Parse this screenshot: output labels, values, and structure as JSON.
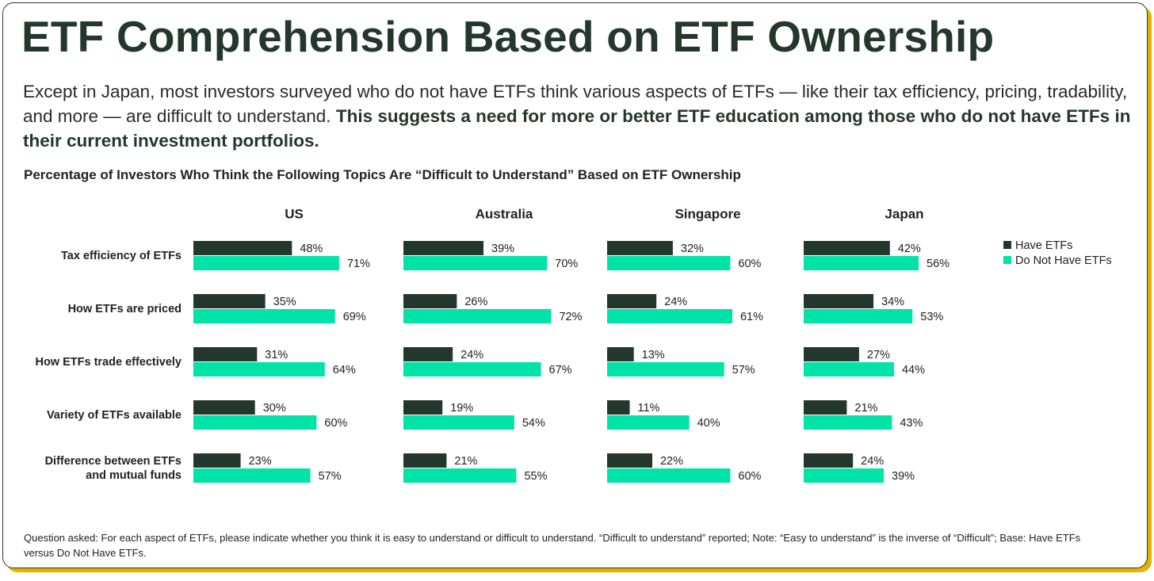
{
  "title": "ETF Comprehension Based on ETF Ownership",
  "subtitle": {
    "plain": "Except in Japan, most investors surveyed who do not have ETFs think various aspects of ETFs — like their tax efficiency, pricing, tradability, and more — are difficult to understand.",
    "bold": "This suggests a need for more or better ETF education among those who do not have ETFs in their current investment portfolios."
  },
  "footnote": "Question asked: For each aspect of ETFs, please indicate whether you think it is easy to understand or difficult to understand. “Difficult to understand” reported; Note: “Easy to understand” is the inverse of “Difficult”; Base: Have ETFs versus Do Not Have ETFs.",
  "chart_data": {
    "type": "bar",
    "orientation": "horizontal",
    "title": "Percentage of Investors Who Think the Following Topics Are “Difficult to Understand” Based on ETF Ownership",
    "categories": [
      "Tax efficiency of ETFs",
      "How ETFs are priced",
      "How ETFs trade effectively",
      "Variety of ETFs available",
      "Difference between ETFs and mutual funds"
    ],
    "series": [
      {
        "name": "Have ETFs",
        "color": "#23372d"
      },
      {
        "name": "Do Not Have ETFs",
        "color": "#00e3a8"
      }
    ],
    "xlim": [
      0,
      100
    ],
    "legend": "right",
    "panels": [
      {
        "title": "US",
        "series": [
          {
            "values": [
              48,
              35,
              31,
              30,
              23
            ],
            "value_labels": [
              "48%",
              "35%",
              "31%",
              "30%",
              "23%"
            ]
          },
          {
            "values": [
              71,
              69,
              64,
              60,
              57
            ],
            "value_labels": [
              "71%",
              "69%",
              "64%",
              "60%",
              "57%"
            ]
          }
        ]
      },
      {
        "title": "Australia",
        "series": [
          {
            "values": [
              39,
              26,
              24,
              19,
              21
            ],
            "value_labels": [
              "39%",
              "26%",
              "24%",
              "19%",
              "21%"
            ]
          },
          {
            "values": [
              70,
              72,
              67,
              54,
              55
            ],
            "value_labels": [
              "70%",
              "72%",
              "67%",
              "54%",
              "55%"
            ]
          }
        ]
      },
      {
        "title": "Singapore",
        "series": [
          {
            "values": [
              32,
              24,
              13,
              11,
              22
            ],
            "value_labels": [
              "32%",
              "24%",
              "13%",
              "11%",
              "22%"
            ]
          },
          {
            "values": [
              60,
              61,
              57,
              40,
              60
            ],
            "value_labels": [
              "60%",
              "61%",
              "57%",
              "40%",
              "60%"
            ]
          }
        ]
      },
      {
        "title": "Japan",
        "series": [
          {
            "values": [
              42,
              34,
              27,
              21,
              24
            ],
            "value_labels": [
              "42%",
              "34%",
              "27%",
              "21%",
              "24%"
            ]
          },
          {
            "values": [
              56,
              53,
              44,
              43,
              39
            ],
            "value_labels": [
              "56%",
              "53%",
              "44%",
              "43%",
              "39%"
            ]
          }
        ]
      }
    ]
  }
}
